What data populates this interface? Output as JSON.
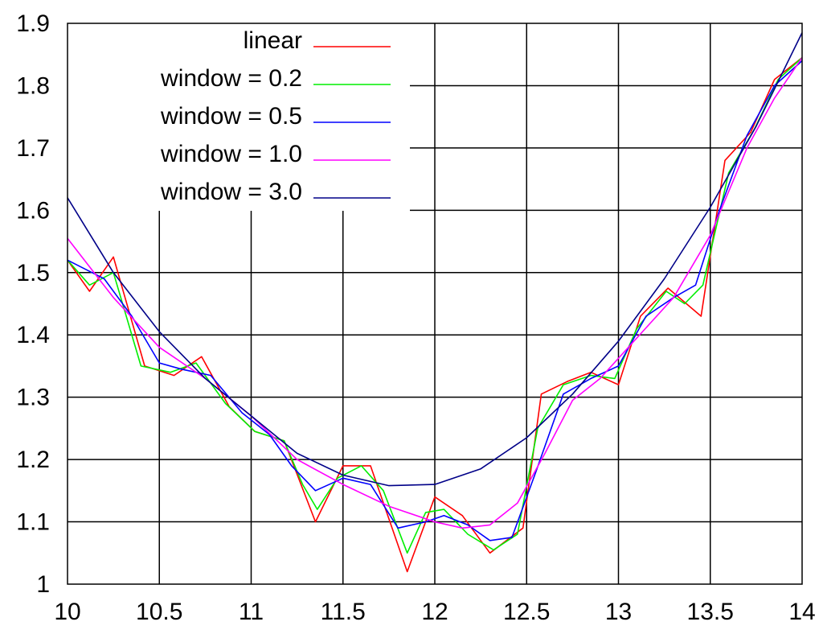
{
  "chart_data": {
    "type": "line",
    "title": "",
    "xlabel": "",
    "ylabel": "",
    "xlim": [
      10,
      14
    ],
    "ylim": [
      1.0,
      1.9
    ],
    "xticks": [
      "10",
      "10.5",
      "11",
      "11.5",
      "12",
      "12.5",
      "13",
      "13.5",
      "14"
    ],
    "yticks": [
      "1",
      "1.1",
      "1.2",
      "1.3",
      "1.4",
      "1.5",
      "1.6",
      "1.7",
      "1.8",
      "1.9"
    ],
    "grid": true,
    "legend_position": "top-left",
    "series": [
      {
        "name": "linear",
        "color": "#ff0000",
        "x": [
          10.0,
          10.12,
          10.25,
          10.42,
          10.58,
          10.73,
          10.88,
          11.02,
          11.18,
          11.35,
          11.5,
          11.65,
          11.85,
          12.0,
          12.15,
          12.3,
          12.48,
          12.58,
          12.72,
          12.85,
          13.0,
          13.12,
          13.27,
          13.45,
          13.58,
          13.72,
          13.85,
          14.0
        ],
        "y": [
          1.52,
          1.47,
          1.525,
          1.35,
          1.335,
          1.365,
          1.285,
          1.245,
          1.23,
          1.1,
          1.19,
          1.19,
          1.02,
          1.14,
          1.11,
          1.05,
          1.09,
          1.305,
          1.325,
          1.34,
          1.32,
          1.43,
          1.475,
          1.43,
          1.68,
          1.725,
          1.81,
          1.845
        ]
      },
      {
        "name": "window = 0.2",
        "color": "#00ee00",
        "x": [
          10.0,
          10.12,
          10.25,
          10.4,
          10.56,
          10.7,
          10.86,
          11.02,
          11.18,
          11.28,
          11.36,
          11.47,
          11.6,
          11.72,
          11.85,
          11.95,
          12.05,
          12.18,
          12.32,
          12.45,
          12.56,
          12.7,
          12.85,
          12.98,
          13.1,
          13.26,
          13.36,
          13.46,
          13.6,
          13.74,
          13.87,
          14.0
        ],
        "y": [
          1.52,
          1.48,
          1.5,
          1.35,
          1.34,
          1.355,
          1.29,
          1.245,
          1.23,
          1.16,
          1.12,
          1.17,
          1.19,
          1.15,
          1.05,
          1.115,
          1.12,
          1.08,
          1.055,
          1.08,
          1.25,
          1.32,
          1.335,
          1.33,
          1.41,
          1.47,
          1.45,
          1.48,
          1.66,
          1.73,
          1.81,
          1.845
        ]
      },
      {
        "name": "window = 0.5",
        "color": "#0000ff",
        "x": [
          10.0,
          10.2,
          10.35,
          10.5,
          10.62,
          10.78,
          10.95,
          11.1,
          11.22,
          11.35,
          11.5,
          11.65,
          11.8,
          11.95,
          12.05,
          12.18,
          12.3,
          12.42,
          12.55,
          12.7,
          12.85,
          13.0,
          13.15,
          13.3,
          13.42,
          13.55,
          13.7,
          13.85,
          14.0
        ],
        "y": [
          1.52,
          1.49,
          1.43,
          1.355,
          1.345,
          1.335,
          1.275,
          1.24,
          1.19,
          1.15,
          1.17,
          1.16,
          1.09,
          1.1,
          1.11,
          1.095,
          1.07,
          1.075,
          1.18,
          1.305,
          1.33,
          1.35,
          1.43,
          1.46,
          1.48,
          1.6,
          1.72,
          1.8,
          1.84
        ]
      },
      {
        "name": "window = 1.0",
        "color": "#ff00ff",
        "x": [
          10.0,
          10.25,
          10.5,
          10.75,
          11.0,
          11.25,
          11.5,
          11.75,
          12.0,
          12.15,
          12.3,
          12.45,
          12.6,
          12.75,
          12.9,
          13.1,
          13.3,
          13.5,
          13.7,
          13.85,
          14.0
        ],
        "y": [
          1.555,
          1.46,
          1.38,
          1.33,
          1.27,
          1.2,
          1.16,
          1.125,
          1.1,
          1.09,
          1.095,
          1.13,
          1.21,
          1.295,
          1.33,
          1.395,
          1.46,
          1.56,
          1.7,
          1.78,
          1.845
        ]
      },
      {
        "name": "window = 3.0",
        "color": "#000088",
        "x": [
          10.0,
          10.25,
          10.5,
          10.75,
          11.0,
          11.25,
          11.5,
          11.75,
          12.0,
          12.25,
          12.5,
          12.75,
          13.0,
          13.25,
          13.5,
          13.75,
          14.0
        ],
        "y": [
          1.62,
          1.5,
          1.405,
          1.33,
          1.27,
          1.21,
          1.175,
          1.158,
          1.16,
          1.185,
          1.235,
          1.305,
          1.39,
          1.49,
          1.605,
          1.735,
          1.885
        ]
      }
    ]
  }
}
